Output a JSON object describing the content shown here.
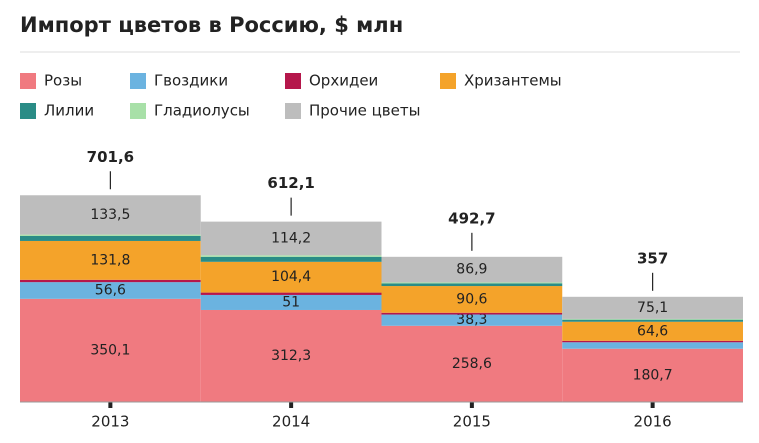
{
  "chart_data": {
    "type": "stacked_bar",
    "title": "Импорт цветов в Россию, $ млн",
    "categories": [
      "2013",
      "2014",
      "2015",
      "2016"
    ],
    "series": [
      {
        "name": "Розы",
        "color": "#f07a80",
        "values": [
          350.1,
          312.3,
          258.6,
          180.7
        ],
        "value_labels": [
          "350,1",
          "312,3",
          "258,6",
          "180,7"
        ]
      },
      {
        "name": "Гвоздики",
        "color": "#6bb3e0",
        "values": [
          56.6,
          51,
          38.3,
          22
        ],
        "value_labels": [
          "56,6",
          "51",
          "38,3",
          null
        ]
      },
      {
        "name": "Орхидеи",
        "color": "#b5174b",
        "values": [
          8,
          8,
          6,
          5
        ],
        "value_labels": [
          null,
          null,
          null,
          null
        ]
      },
      {
        "name": "Хризантемы",
        "color": "#f4a32a",
        "values": [
          131.8,
          104.4,
          90.6,
          64.6
        ],
        "value_labels": [
          "131,8",
          "104,4",
          "90,6",
          "64,6"
        ]
      },
      {
        "name": "Лилии",
        "color": "#2a8c86",
        "values": [
          17,
          17,
          9,
          7
        ],
        "value_labels": [
          null,
          null,
          null,
          null
        ]
      },
      {
        "name": "Гладиолусы",
        "color": "#a8e0a8",
        "values": [
          4.6,
          5.2,
          3.3,
          2.6
        ],
        "value_labels": [
          null,
          null,
          null,
          null
        ]
      },
      {
        "name": "Прочие цветы",
        "color": "#bdbdbd",
        "values": [
          133.5,
          114.2,
          86.9,
          75.1
        ],
        "value_labels": [
          "133,5",
          "114,2",
          "86,9",
          "75,1"
        ]
      }
    ],
    "totals": [
      701.6,
      612.1,
      492.7,
      357
    ],
    "total_labels": [
      "701,6",
      "612,1",
      "492,7",
      "357"
    ],
    "ylim": [
      0,
      750
    ]
  }
}
